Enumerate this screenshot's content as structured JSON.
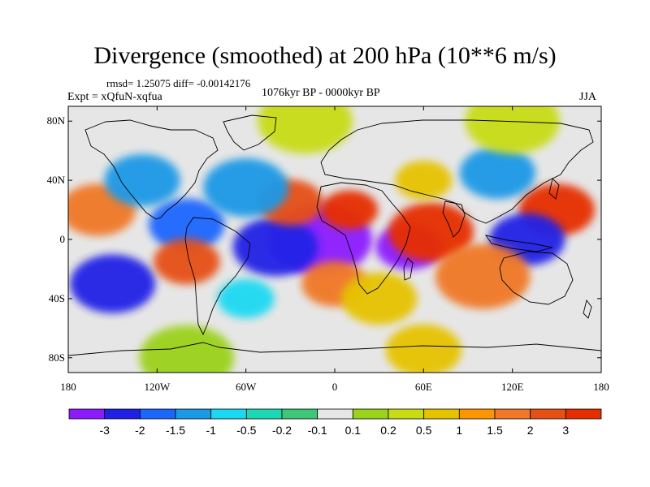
{
  "title": "Divergence (smoothed) at 200 hPa (10**6 m/s)",
  "stats_line": "rmsd= 1.25075 diff= -0.00142176",
  "experiment": "Expt = xQfuN-xqfua",
  "period": "1076kyr BP - 0000kyr BP",
  "season": "JJA",
  "axes": {
    "lat_labels": [
      {
        "text": "80N",
        "lat": 80
      },
      {
        "text": "40N",
        "lat": 40
      },
      {
        "text": "0",
        "lat": 0
      },
      {
        "text": "40S",
        "lat": -40
      },
      {
        "text": "80S",
        "lat": -80
      }
    ],
    "lon_labels": [
      {
        "text": "180",
        "lon": -180
      },
      {
        "text": "120W",
        "lon": -120
      },
      {
        "text": "60W",
        "lon": -60
      },
      {
        "text": "0",
        "lon": 0
      },
      {
        "text": "60E",
        "lon": 60
      },
      {
        "text": "120E",
        "lon": 120
      },
      {
        "text": "180",
        "lon": 180
      }
    ],
    "lat_range": [
      -90,
      90
    ],
    "lon_range": [
      -180,
      180
    ]
  },
  "colorbar": {
    "colors": [
      "#8c1aff",
      "#2020e6",
      "#1a66ff",
      "#1a99e6",
      "#1ad9f2",
      "#1ad9b3",
      "#3cc878",
      "#e6e6e6",
      "#9bd21a",
      "#c8dc14",
      "#e6c300",
      "#ff9600",
      "#f07828",
      "#e65014",
      "#e62d00"
    ],
    "labels": [
      "-3",
      "-2",
      "-1.5",
      "-1",
      "-0.5",
      "-0.2",
      "-0.1",
      "0.1",
      "0.2",
      "0.5",
      "1",
      "1.5",
      "2",
      "3"
    ]
  },
  "field_blobs": [
    {
      "lon": -10,
      "lat": 0,
      "r": 22,
      "level": 0
    },
    {
      "lon": -40,
      "lat": -5,
      "r": 18,
      "level": 1
    },
    {
      "lon": 50,
      "lat": -5,
      "r": 14,
      "level": 0
    },
    {
      "lon": 65,
      "lat": 5,
      "r": 18,
      "level": 14
    },
    {
      "lon": 10,
      "lat": 20,
      "r": 12,
      "level": 14
    },
    {
      "lon": -30,
      "lat": 25,
      "r": 14,
      "level": 13
    },
    {
      "lon": 150,
      "lat": 20,
      "r": 16,
      "level": 14
    },
    {
      "lon": 130,
      "lat": 0,
      "r": 16,
      "level": 1
    },
    {
      "lon": -150,
      "lat": -30,
      "r": 18,
      "level": 1
    },
    {
      "lon": -100,
      "lat": 10,
      "r": 16,
      "level": 2
    },
    {
      "lon": -100,
      "lat": -15,
      "r": 14,
      "level": 13
    },
    {
      "lon": -160,
      "lat": 20,
      "r": 16,
      "level": 12
    },
    {
      "lon": 100,
      "lat": -25,
      "r": 20,
      "level": 12
    },
    {
      "lon": -60,
      "lat": 35,
      "r": 18,
      "level": 3
    },
    {
      "lon": -130,
      "lat": 40,
      "r": 16,
      "level": 3
    },
    {
      "lon": 110,
      "lat": 45,
      "r": 16,
      "level": 3
    },
    {
      "lon": 60,
      "lat": 40,
      "r": 12,
      "level": 10
    },
    {
      "lon": 0,
      "lat": -30,
      "r": 14,
      "level": 12
    },
    {
      "lon": -60,
      "lat": -40,
      "r": 12,
      "level": 4
    },
    {
      "lon": 30,
      "lat": -40,
      "r": 16,
      "level": 10
    },
    {
      "lon": -20,
      "lat": 80,
      "r": 20,
      "level": 9
    },
    {
      "lon": 120,
      "lat": 80,
      "r": 20,
      "level": 9
    },
    {
      "lon": -100,
      "lat": -80,
      "r": 20,
      "level": 8
    },
    {
      "lon": 60,
      "lat": -75,
      "r": 16,
      "level": 10
    }
  ]
}
